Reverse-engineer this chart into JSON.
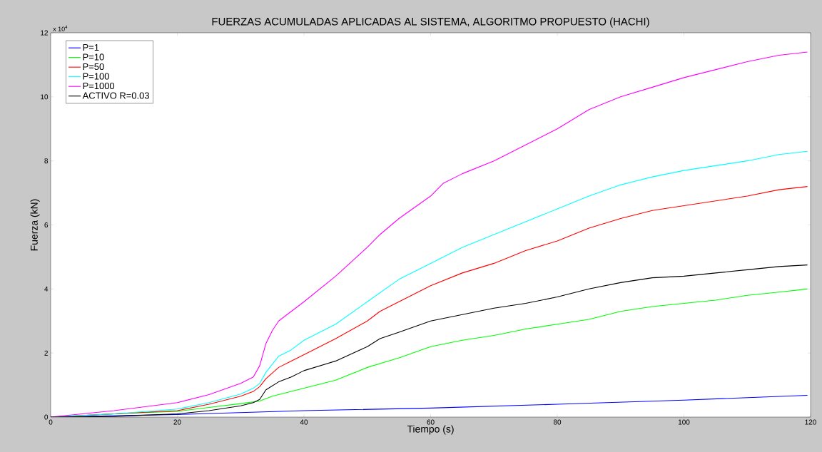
{
  "chart_data": {
    "type": "line",
    "title": "FUERZAS ACUMULADAS APLICADAS AL SISTEMA, ALGORITMO PROPUESTO (HACHI)",
    "xlabel": "Tiempo (s)",
    "ylabel": "Fuerza (kN)",
    "annotations": [
      "x 10$^{4}$"
    ],
    "xlim": [
      0,
      120
    ],
    "xticks": [
      0,
      20,
      40,
      60,
      80,
      100,
      120
    ],
    "ylim": [
      0,
      12
    ],
    "yticks": [
      0,
      2,
      4,
      6,
      8,
      10,
      12
    ],
    "legend": "top left",
    "line_style": "solid",
    "series": [
      {
        "name": "P=1",
        "color": "#0000ff",
        "x": [
          0,
          20,
          40,
          60,
          80,
          100,
          119.5
        ],
        "values": [
          0,
          0.08,
          0.2,
          0.28,
          0.4,
          0.53,
          0.68
        ]
      },
      {
        "name": "P=10",
        "color": "#00ff00",
        "x": [
          0,
          10,
          20,
          25,
          30,
          33,
          35,
          40,
          45,
          50,
          55,
          60,
          65,
          70,
          75,
          80,
          85,
          90,
          95,
          100,
          105,
          110,
          115,
          119.5
        ],
        "values": [
          0,
          0.1,
          0.18,
          0.3,
          0.42,
          0.5,
          0.65,
          0.9,
          1.15,
          1.55,
          1.85,
          2.2,
          2.4,
          2.55,
          2.75,
          2.9,
          3.05,
          3.3,
          3.45,
          3.55,
          3.65,
          3.8,
          3.9,
          4
        ]
      },
      {
        "name": "P=50",
        "color": "#ff0000",
        "x": [
          0,
          20,
          25,
          30,
          32,
          33,
          34,
          36,
          38,
          40,
          45,
          50,
          52,
          55,
          60,
          65,
          70,
          75,
          80,
          85,
          90,
          95,
          100,
          105,
          110,
          115,
          119.5
        ],
        "values": [
          0,
          0.2,
          0.4,
          0.65,
          0.8,
          0.95,
          1.2,
          1.55,
          1.75,
          1.95,
          2.45,
          3,
          3.3,
          3.6,
          4.1,
          4.5,
          4.8,
          5.2,
          5.5,
          5.9,
          6.2,
          6.45,
          6.6,
          6.75,
          6.9,
          7.1,
          7.2
        ]
      },
      {
        "name": "P=100",
        "color": "#00ffff",
        "x": [
          0,
          10,
          20,
          25,
          30,
          32,
          33,
          34,
          36,
          38,
          40,
          45,
          50,
          55,
          60,
          65,
          70,
          75,
          80,
          85,
          90,
          95,
          100,
          105,
          110,
          115,
          119.5
        ],
        "values": [
          0,
          0.1,
          0.25,
          0.45,
          0.72,
          0.9,
          1.05,
          1.4,
          1.9,
          2.1,
          2.4,
          2.9,
          3.6,
          4.3,
          4.8,
          5.3,
          5.7,
          6.1,
          6.5,
          6.9,
          7.25,
          7.5,
          7.7,
          7.85,
          8,
          8.2,
          8.3
        ]
      },
      {
        "name": "P=1000",
        "color": "#ff00ff",
        "x": [
          0,
          10,
          20,
          25,
          30,
          32,
          33,
          34,
          35,
          36,
          38,
          40,
          45,
          50,
          52,
          55,
          60,
          62,
          65,
          70,
          75,
          80,
          85,
          90,
          95,
          100,
          105,
          110,
          115,
          119.5
        ],
        "values": [
          0,
          0.2,
          0.45,
          0.7,
          1.05,
          1.25,
          1.6,
          2.3,
          2.7,
          3,
          3.3,
          3.6,
          4.4,
          5.3,
          5.7,
          6.2,
          6.9,
          7.3,
          7.6,
          8,
          8.5,
          9,
          9.6,
          10,
          10.3,
          10.6,
          10.85,
          11.1,
          11.3,
          11.4
        ]
      },
      {
        "name": "ACTIVO R=0.03",
        "color": "#000000",
        "x": [
          0,
          10,
          20,
          25,
          30,
          32,
          33,
          34,
          36,
          38,
          40,
          45,
          50,
          52,
          55,
          60,
          65,
          70,
          75,
          80,
          85,
          90,
          95,
          100,
          105,
          110,
          115,
          119.5
        ],
        "values": [
          0,
          0.02,
          0.1,
          0.2,
          0.35,
          0.45,
          0.55,
          0.85,
          1.1,
          1.25,
          1.45,
          1.75,
          2.2,
          2.45,
          2.65,
          3,
          3.2,
          3.4,
          3.55,
          3.75,
          4,
          4.2,
          4.35,
          4.4,
          4.5,
          4.6,
          4.7,
          4.75
        ]
      }
    ]
  }
}
